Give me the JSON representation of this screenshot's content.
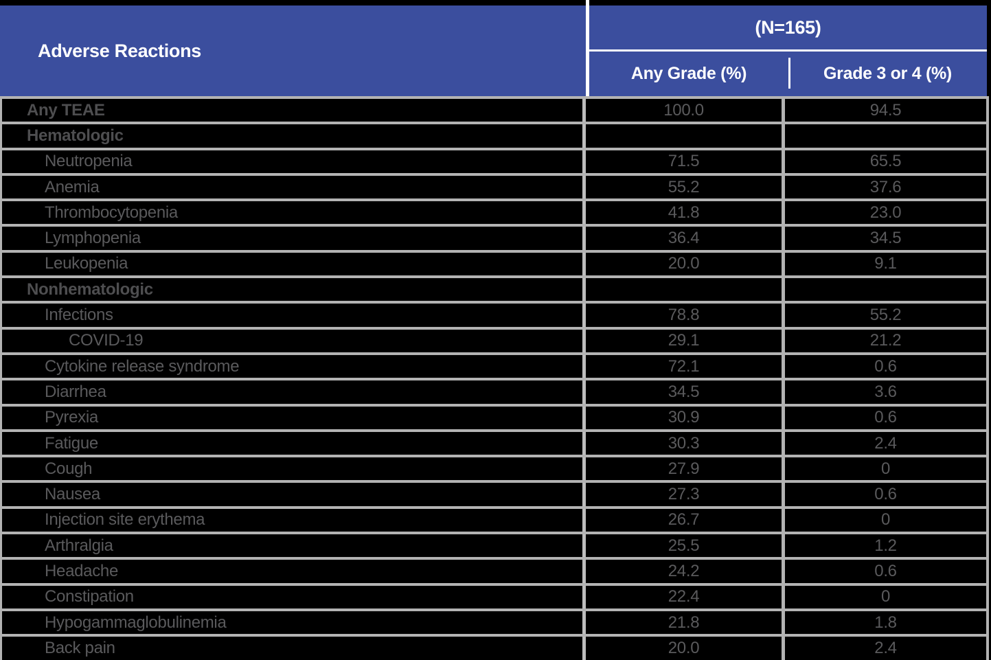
{
  "title": "Adverse reactions table",
  "colors": {
    "accent_blue": "#3B4E9E",
    "header_text": "#FFFFFF",
    "body_background": "#000000",
    "body_text": "#5A5A5C",
    "grid_line": "#B3B3B3"
  },
  "header": {
    "col1": "Adverse Reactions",
    "group": "(N=165)",
    "col2": "Any Grade (%)",
    "col3": "Grade 3 or 4 (%)"
  },
  "table": {
    "rows": [
      {
        "label": "Any TEAE",
        "level": 0,
        "bold": true,
        "any_grade": "100.0",
        "grade_3_4": "94.5"
      },
      {
        "label": "Hematologic",
        "level": 0,
        "bold": true,
        "any_grade": "",
        "grade_3_4": ""
      },
      {
        "label": "Neutropenia",
        "level": 1,
        "bold": false,
        "any_grade": "71.5",
        "grade_3_4": "65.5"
      },
      {
        "label": "Anemia",
        "level": 1,
        "bold": false,
        "any_grade": "55.2",
        "grade_3_4": "37.6"
      },
      {
        "label": "Thrombocytopenia",
        "level": 1,
        "bold": false,
        "any_grade": "41.8",
        "grade_3_4": "23.0"
      },
      {
        "label": "Lymphopenia",
        "level": 1,
        "bold": false,
        "any_grade": "36.4",
        "grade_3_4": "34.5"
      },
      {
        "label": "Leukopenia",
        "level": 1,
        "bold": false,
        "any_grade": "20.0",
        "grade_3_4": "9.1"
      },
      {
        "label": "Nonhematologic",
        "level": 0,
        "bold": true,
        "any_grade": "",
        "grade_3_4": ""
      },
      {
        "label": "Infections",
        "level": 1,
        "bold": false,
        "any_grade": "78.8",
        "grade_3_4": "55.2"
      },
      {
        "label": "COVID-19",
        "level": 2,
        "bold": false,
        "any_grade": "29.1",
        "grade_3_4": "21.2"
      },
      {
        "label": "Cytokine release syndrome",
        "level": 1,
        "bold": false,
        "any_grade": "72.1",
        "grade_3_4": "0.6"
      },
      {
        "label": "Diarrhea",
        "level": 1,
        "bold": false,
        "any_grade": "34.5",
        "grade_3_4": "3.6"
      },
      {
        "label": "Pyrexia",
        "level": 1,
        "bold": false,
        "any_grade": "30.9",
        "grade_3_4": "0.6"
      },
      {
        "label": "Fatigue",
        "level": 1,
        "bold": false,
        "any_grade": "30.3",
        "grade_3_4": "2.4"
      },
      {
        "label": "Cough",
        "level": 1,
        "bold": false,
        "any_grade": "27.9",
        "grade_3_4": "0"
      },
      {
        "label": "Nausea",
        "level": 1,
        "bold": false,
        "any_grade": "27.3",
        "grade_3_4": "0.6"
      },
      {
        "label": "Injection site erythema",
        "level": 1,
        "bold": false,
        "any_grade": "26.7",
        "grade_3_4": "0"
      },
      {
        "label": "Arthralgia",
        "level": 1,
        "bold": false,
        "any_grade": "25.5",
        "grade_3_4": "1.2"
      },
      {
        "label": "Headache",
        "level": 1,
        "bold": false,
        "any_grade": "24.2",
        "grade_3_4": "0.6"
      },
      {
        "label": "Constipation",
        "level": 1,
        "bold": false,
        "any_grade": "22.4",
        "grade_3_4": "0"
      },
      {
        "label": "Hypogammaglobulinemia",
        "level": 1,
        "bold": false,
        "any_grade": "21.8",
        "grade_3_4": "1.8"
      },
      {
        "label": "Back pain",
        "level": 1,
        "bold": false,
        "any_grade": "20.0",
        "grade_3_4": "2.4"
      }
    ]
  },
  "chart_data": {
    "type": "table",
    "title": "Adverse Reactions (N=165)",
    "columns": [
      "Adverse Reactions",
      "Any Grade (%)",
      "Grade 3 or 4 (%)"
    ],
    "rows": [
      [
        "Any TEAE",
        100.0,
        94.5
      ],
      [
        "Hematologic",
        null,
        null
      ],
      [
        "Neutropenia",
        71.5,
        65.5
      ],
      [
        "Anemia",
        55.2,
        37.6
      ],
      [
        "Thrombocytopenia",
        41.8,
        23.0
      ],
      [
        "Lymphopenia",
        36.4,
        34.5
      ],
      [
        "Leukopenia",
        20.0,
        9.1
      ],
      [
        "Nonhematologic",
        null,
        null
      ],
      [
        "Infections",
        78.8,
        55.2
      ],
      [
        "COVID-19",
        29.1,
        21.2
      ],
      [
        "Cytokine release syndrome",
        72.1,
        0.6
      ],
      [
        "Diarrhea",
        34.5,
        3.6
      ],
      [
        "Pyrexia",
        30.9,
        0.6
      ],
      [
        "Fatigue",
        30.3,
        2.4
      ],
      [
        "Cough",
        27.9,
        0
      ],
      [
        "Nausea",
        27.3,
        0.6
      ],
      [
        "Injection site erythema",
        26.7,
        0
      ],
      [
        "Arthralgia",
        25.5,
        1.2
      ],
      [
        "Headache",
        24.2,
        0.6
      ],
      [
        "Constipation",
        22.4,
        0
      ],
      [
        "Hypogammaglobulinemia",
        21.8,
        1.8
      ],
      [
        "Back pain",
        20.0,
        2.4
      ]
    ]
  }
}
